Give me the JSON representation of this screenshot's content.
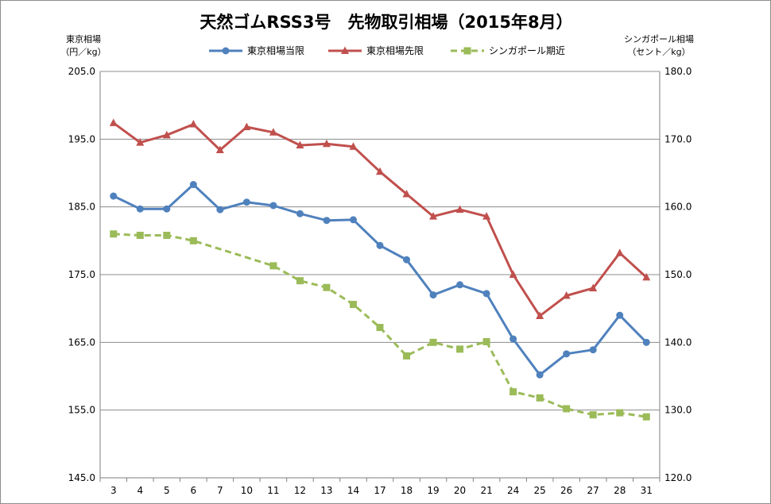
{
  "chart_data": {
    "type": "line",
    "title": "天然ゴムRSS3号　先物取引相場（2015年8月）",
    "y_left_label": [
      "東京相場",
      "（円／kg）"
    ],
    "y_right_label": [
      "シンガポール相場",
      "（セント／kg）"
    ],
    "categories": [
      "3",
      "4",
      "5",
      "6",
      "7",
      "10",
      "11",
      "12",
      "13",
      "14",
      "17",
      "18",
      "19",
      "20",
      "21",
      "24",
      "25",
      "26",
      "27",
      "28",
      "31"
    ],
    "ylim_left": [
      145,
      205
    ],
    "ylim_right": [
      120,
      180
    ],
    "y_left_ticks": [
      "145.0",
      "155.0",
      "165.0",
      "175.0",
      "185.0",
      "195.0",
      "205.0"
    ],
    "y_right_ticks": [
      "120.0",
      "130.0",
      "140.0",
      "150.0",
      "160.0",
      "170.0",
      "180.0"
    ],
    "grid": true,
    "legend_position": "top",
    "series": [
      {
        "name": "東京相場当限",
        "axis": "left",
        "color": "#4f81bd",
        "marker": "circle",
        "dash": false,
        "values": [
          186.6,
          184.7,
          184.7,
          188.3,
          184.6,
          185.7,
          185.2,
          184.0,
          183.0,
          183.1,
          179.3,
          177.2,
          172.0,
          173.5,
          172.2,
          165.5,
          160.2,
          163.3,
          163.9,
          169.0,
          165.0
        ]
      },
      {
        "name": "東京相場先限",
        "axis": "left",
        "color": "#c0504d",
        "marker": "triangle",
        "dash": false,
        "values": [
          197.4,
          194.5,
          195.6,
          197.2,
          193.4,
          196.8,
          196.0,
          194.1,
          194.3,
          193.9,
          190.2,
          186.9,
          183.6,
          184.6,
          183.6,
          175.0,
          168.9,
          171.9,
          173.0,
          178.2,
          174.6
        ]
      },
      {
        "name": "シンガポール期近",
        "axis": "right",
        "color": "#9bbb59",
        "marker": "square",
        "dash": true,
        "values": [
          156.0,
          155.8,
          155.8,
          155.0,
          null,
          null,
          151.3,
          149.1,
          148.1,
          145.6,
          142.2,
          138.0,
          140.0,
          139.0,
          140.1,
          132.7,
          131.8,
          130.2,
          129.3,
          129.6,
          129.0
        ]
      }
    ]
  }
}
